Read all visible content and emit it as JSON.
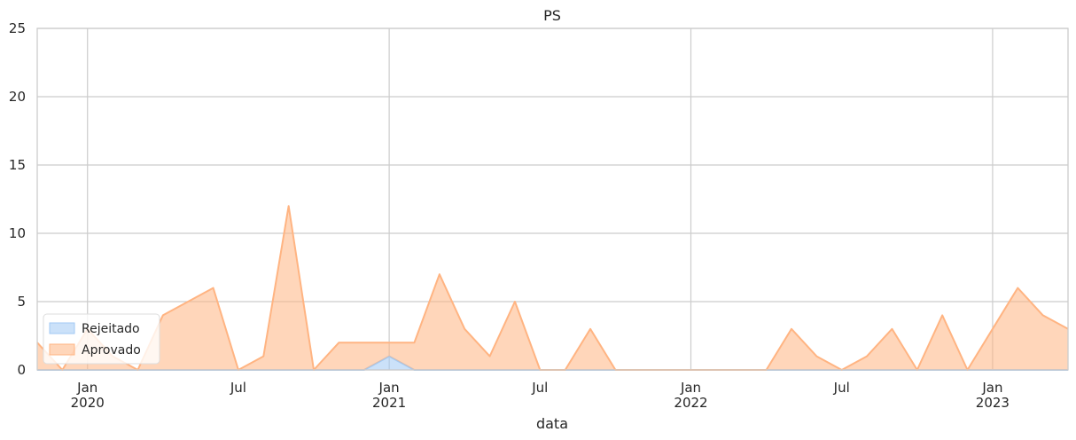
{
  "chart_data": {
    "type": "area",
    "title": "PS",
    "xlabel": "data",
    "ylabel": "",
    "ylim": [
      0,
      25
    ],
    "yticks": [
      0,
      5,
      10,
      15,
      20,
      25
    ],
    "xlim": [
      "2019-11",
      "2023-04"
    ],
    "x": [
      "2019-11",
      "2019-12",
      "2020-01",
      "2020-02",
      "2020-03",
      "2020-04",
      "2020-05",
      "2020-06",
      "2020-07",
      "2020-08",
      "2020-09",
      "2020-10",
      "2020-11",
      "2020-12",
      "2021-01",
      "2021-02",
      "2021-03",
      "2021-04",
      "2021-05",
      "2021-06",
      "2021-07",
      "2021-08",
      "2021-09",
      "2021-10",
      "2021-11",
      "2021-12",
      "2022-01",
      "2022-02",
      "2022-03",
      "2022-04",
      "2022-05",
      "2022-06",
      "2022-07",
      "2022-08",
      "2022-09",
      "2022-10",
      "2022-11",
      "2022-12",
      "2023-01",
      "2023-02",
      "2023-03",
      "2023-04"
    ],
    "xticks": [
      {
        "date": "2020-01",
        "label": "Jan",
        "year": "2020"
      },
      {
        "date": "2020-07",
        "label": "Jul",
        "year": ""
      },
      {
        "date": "2021-01",
        "label": "Jan",
        "year": "2021"
      },
      {
        "date": "2021-07",
        "label": "Jul",
        "year": ""
      },
      {
        "date": "2022-01",
        "label": "Jan",
        "year": "2022"
      },
      {
        "date": "2022-07",
        "label": "Jul",
        "year": ""
      },
      {
        "date": "2023-01",
        "label": "Jan",
        "year": "2023"
      }
    ],
    "series": [
      {
        "name": "Rejeitado",
        "color": "#a1c9f4",
        "values": [
          0,
          0,
          0,
          0,
          0,
          0,
          0,
          0,
          0,
          0,
          0,
          0,
          0,
          0,
          1,
          0,
          0,
          0,
          0,
          0,
          0,
          0,
          0,
          0,
          0,
          0,
          0,
          0,
          0,
          0,
          0,
          0,
          0,
          0,
          0,
          0,
          0,
          0,
          0,
          0,
          0,
          0
        ]
      },
      {
        "name": "Aprovado",
        "color": "#ffb482",
        "values": [
          2,
          0,
          3,
          1,
          0,
          4,
          5,
          6,
          0,
          1,
          12,
          0,
          2,
          2,
          1,
          2,
          7,
          3,
          1,
          5,
          0,
          0,
          3,
          0,
          0,
          0,
          0,
          0,
          0,
          0,
          3,
          1,
          0,
          1,
          3,
          0,
          4,
          0,
          3,
          6,
          4,
          3
        ]
      }
    ],
    "grid": true,
    "legend": "lower-left",
    "stacked": true
  }
}
